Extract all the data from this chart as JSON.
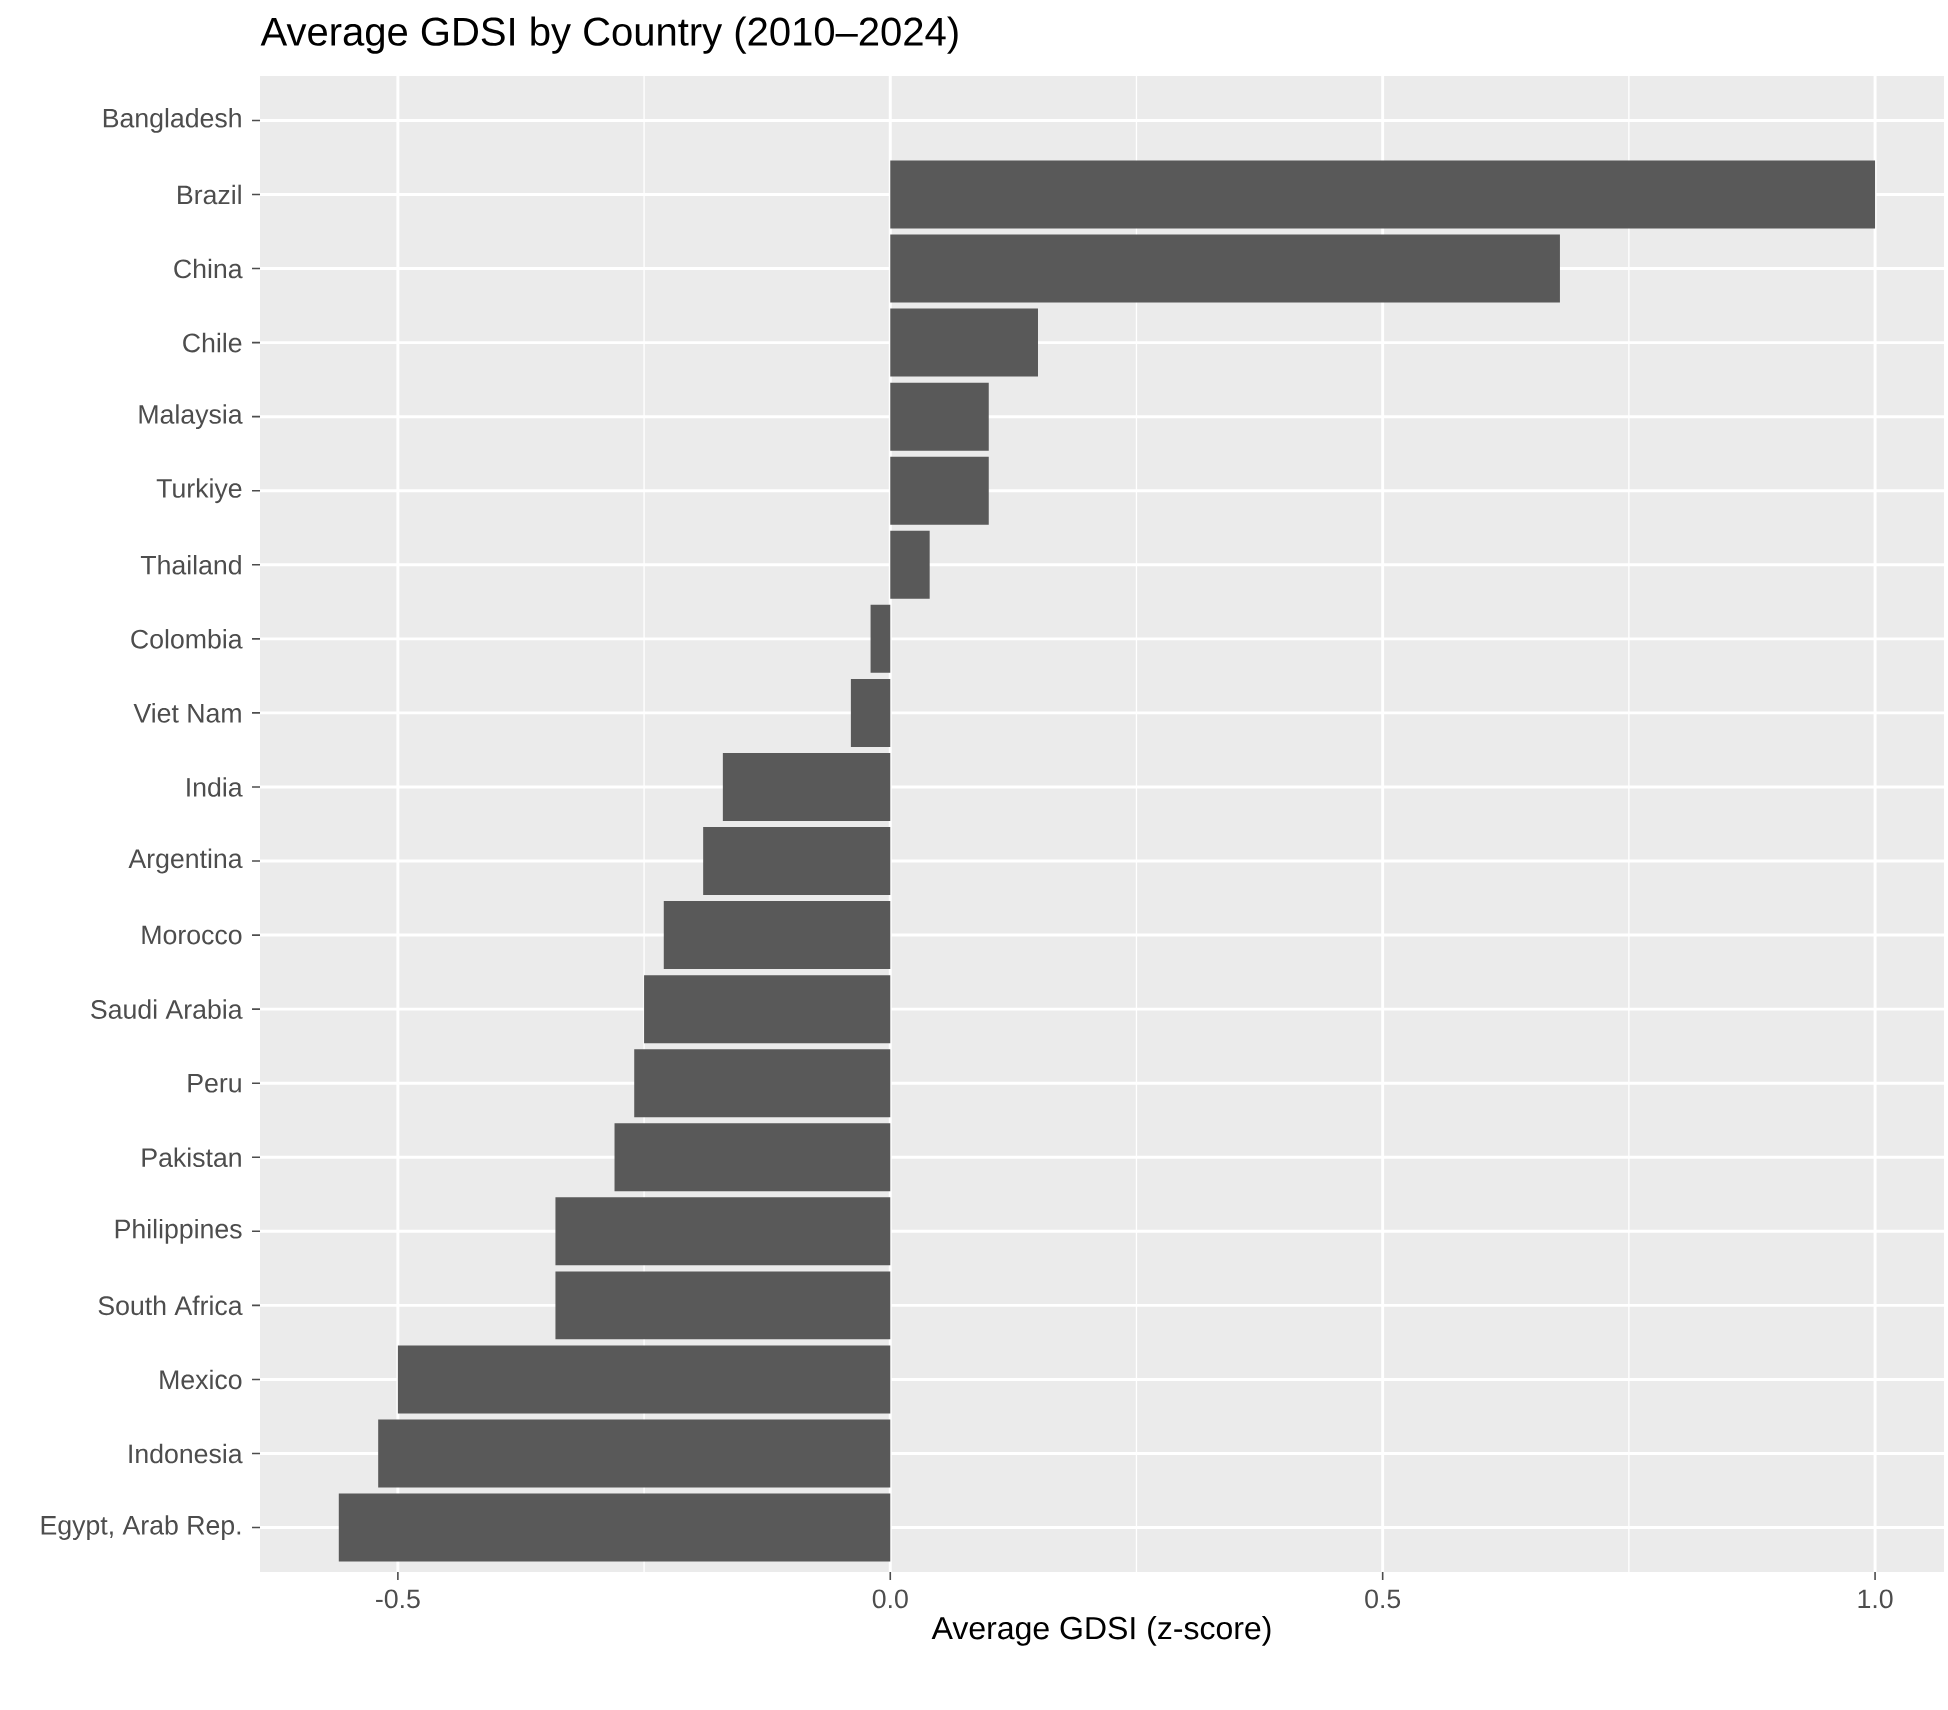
{
  "chart_data": {
    "type": "bar",
    "orientation": "horizontal",
    "title": "Average GDSI by Country (2010–2024)",
    "xlabel": "Average GDSI (z-score)",
    "categories": [
      "Bangladesh",
      "Brazil",
      "China",
      "Chile",
      "Malaysia",
      "Turkiye",
      "Thailand",
      "Colombia",
      "Viet Nam",
      "India",
      "Argentina",
      "Morocco",
      "Saudi Arabia",
      "Peru",
      "Pakistan",
      "Philippines",
      "South Africa",
      "Mexico",
      "Indonesia",
      "Egypt, Arab Rep."
    ],
    "values": [
      null,
      1.0,
      0.68,
      0.15,
      0.1,
      0.1,
      0.04,
      -0.02,
      -0.04,
      -0.17,
      -0.19,
      -0.23,
      -0.25,
      -0.26,
      -0.28,
      -0.34,
      -0.34,
      -0.5,
      -0.52,
      -0.56
    ],
    "color": "#595959",
    "xlim": [
      -0.64,
      1.07
    ],
    "xticks": [
      {
        "value": -0.5,
        "label": "-0.5"
      },
      {
        "value": 0,
        "label": "0.0"
      },
      {
        "value": 0.5,
        "label": "0.5"
      },
      {
        "value": 1,
        "label": "1.0"
      }
    ],
    "grid": true
  }
}
